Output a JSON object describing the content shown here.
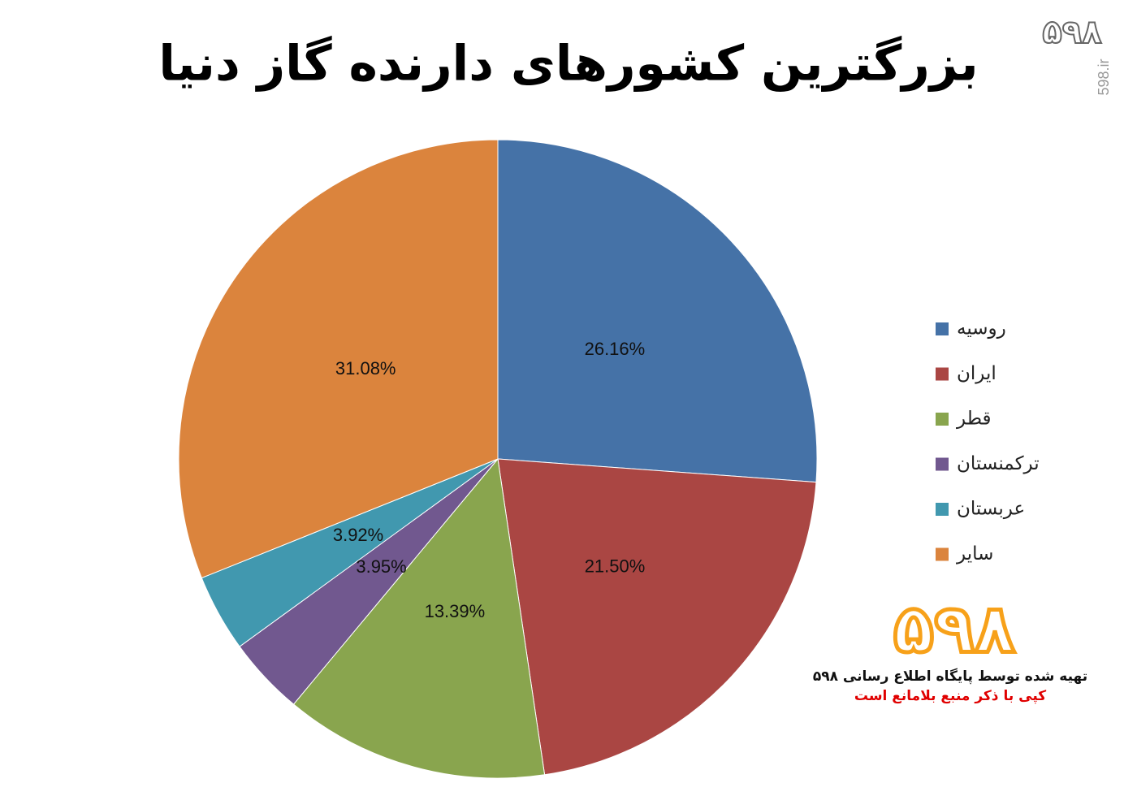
{
  "chart_data": {
    "type": "pie",
    "title": "بزرگترین کشورهای دارنده گاز دنیا",
    "categories": [
      "روسیه",
      "ایران",
      "قطر",
      "ترکمنستان",
      "عربستان",
      "سایر"
    ],
    "values": [
      26.16,
      21.5,
      13.39,
      3.95,
      3.92,
      31.08
    ],
    "value_labels": [
      "26.16%",
      "21.50%",
      "13.39%",
      "3.95%",
      "3.92%",
      "31.08%"
    ],
    "colors": [
      "#4572a7",
      "#aa4643",
      "#89a54e",
      "#71588f",
      "#4198af",
      "#db843d"
    ],
    "legend": "right",
    "watermark": "598.ir",
    "logo": "۵۹۸",
    "credit": "تهیه شده توسط پایگاه اطلاع رسانی ۵۹۸",
    "copyright": "کپی با ذکر منبع بلامانع است"
  }
}
